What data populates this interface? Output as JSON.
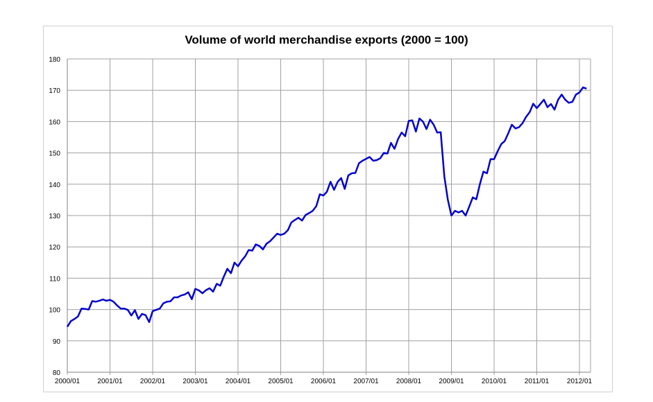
{
  "chart_data": {
    "type": "line",
    "title": "Volume of world merchandise exports (2000 = 100)",
    "xlabel": "",
    "ylabel": "",
    "ylim": [
      80,
      180
    ],
    "yticks": [
      80,
      90,
      100,
      110,
      120,
      130,
      140,
      150,
      160,
      170,
      180
    ],
    "xtick_labels": [
      "2000/01",
      "2001/01",
      "2002/01",
      "2003/01",
      "2004/01",
      "2005/01",
      "2006/01",
      "2007/01",
      "2008/01",
      "2009/01",
      "2010/01",
      "2011/01",
      "2012/01"
    ],
    "grid": true,
    "x_unit": "month index from 2000/01",
    "series": [
      {
        "name": "Volume of world merchandise exports",
        "color": "#0000cc",
        "values": [
          94.5,
          96.3,
          97,
          97.8,
          100.3,
          100.2,
          100,
          102.7,
          102.5,
          102.8,
          103.2,
          102.8,
          103.1,
          102.5,
          101.3,
          100.3,
          100.3,
          99.9,
          98.1,
          99.8,
          97,
          98.6,
          98.2,
          96,
          99.5,
          99.9,
          100.3,
          102,
          102.5,
          102.6,
          103.9,
          103.9,
          104.5,
          104.8,
          105.5,
          103.3,
          106.6,
          106.1,
          105.2,
          106.2,
          106.8,
          105.7,
          108.2,
          107.6,
          110.5,
          113,
          111.6,
          115,
          113.8,
          115.6,
          117,
          119,
          118.8,
          120.8,
          120.3,
          119.2,
          121,
          121.8,
          123,
          124.2,
          123.8,
          124.2,
          125.3,
          127.8,
          128.6,
          129.3,
          128.4,
          130.2,
          130.8,
          131.5,
          133,
          136.8,
          136.4,
          137.6,
          140.8,
          138.2,
          140.7,
          142,
          138.5,
          142.8,
          143.5,
          143.6,
          146.7,
          147.5,
          148.1,
          148.7,
          147.5,
          147.7,
          148.3,
          150,
          149.8,
          153.2,
          151.3,
          154.4,
          156.5,
          155.3,
          160.2,
          160.4,
          156.8,
          161,
          160,
          157.6,
          160.6,
          159,
          156.5,
          156.6,
          142.5,
          135,
          130,
          131.5,
          131,
          131.5,
          130,
          132.8,
          135.8,
          135.2,
          140,
          144,
          143.5,
          148,
          148,
          150.5,
          152.8,
          153.8,
          156.3,
          159,
          157.8,
          158.2,
          159.5,
          161.5,
          163,
          165.7,
          164.3,
          165.6,
          167,
          164.6,
          165.6,
          163.8,
          167,
          168.6,
          167,
          166,
          166.3,
          168.6,
          169.3,
          170.9,
          170.5
        ]
      }
    ]
  }
}
